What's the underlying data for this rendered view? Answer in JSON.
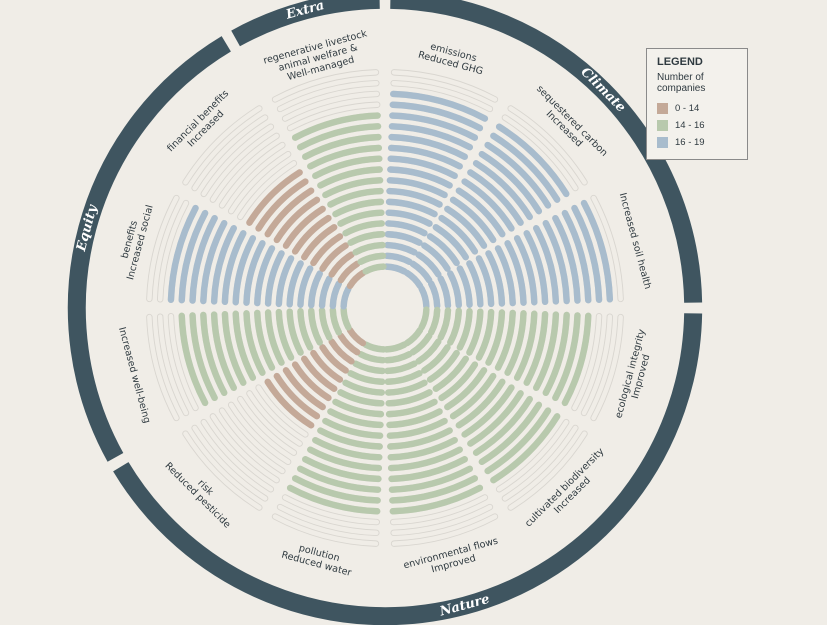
{
  "chart_data": {
    "type": "radial-bar",
    "max_bars": 19,
    "legend": {
      "title": "LEGEND",
      "subtitle": "Number of companies",
      "entries": [
        {
          "label": "0 - 14",
          "color": "#c4a998"
        },
        {
          "label": "14 - 16",
          "color": "#b8c9ad"
        },
        {
          "label": "16 - 19",
          "color": "#a8bccd"
        }
      ]
    },
    "groups": [
      {
        "name": "Climate",
        "start": 0,
        "end": 3
      },
      {
        "name": "Nature",
        "start": 3,
        "end": 8
      },
      {
        "name": "Equity",
        "start": 8,
        "end": 11
      },
      {
        "name": "Extra",
        "start": 11,
        "end": 12
      }
    ],
    "outcomes": [
      {
        "label": [
          "Reduced GHG",
          "emissions"
        ],
        "value": 17,
        "range": "16 - 19"
      },
      {
        "label": [
          "Increased",
          "sequestered carbon"
        ],
        "value": 17,
        "range": "16 - 19"
      },
      {
        "label": [
          "Increased soil health"
        ],
        "value": 18,
        "range": "16 - 19"
      },
      {
        "label": [
          "Improved",
          "ecological integrity"
        ],
        "value": 16,
        "range": "14 - 16"
      },
      {
        "label": [
          "Increased",
          "cultivated biodiversity"
        ],
        "value": 16,
        "range": "14 - 16"
      },
      {
        "label": [
          "Improved",
          "environmental flows"
        ],
        "value": 16,
        "range": "14 - 16"
      },
      {
        "label": [
          "Reduced water",
          "pollution"
        ],
        "value": 16,
        "range": "14 - 16"
      },
      {
        "label": [
          "Reduced pesticide",
          "risk"
        ],
        "value": 10,
        "range": "0 - 14"
      },
      {
        "label": [
          "Increased well-being"
        ],
        "value": 16,
        "range": "14 - 16"
      },
      {
        "label": [
          "Increased social",
          "benefits"
        ],
        "value": 17,
        "range": "16 - 19"
      },
      {
        "label": [
          "Increased",
          "financial benefits"
        ],
        "value": 12,
        "range": "0 - 14"
      },
      {
        "label": [
          "Well-managed",
          "animal welfare &",
          "regenerative livestock"
        ],
        "value": 15,
        "range": "14 - 16"
      }
    ]
  }
}
